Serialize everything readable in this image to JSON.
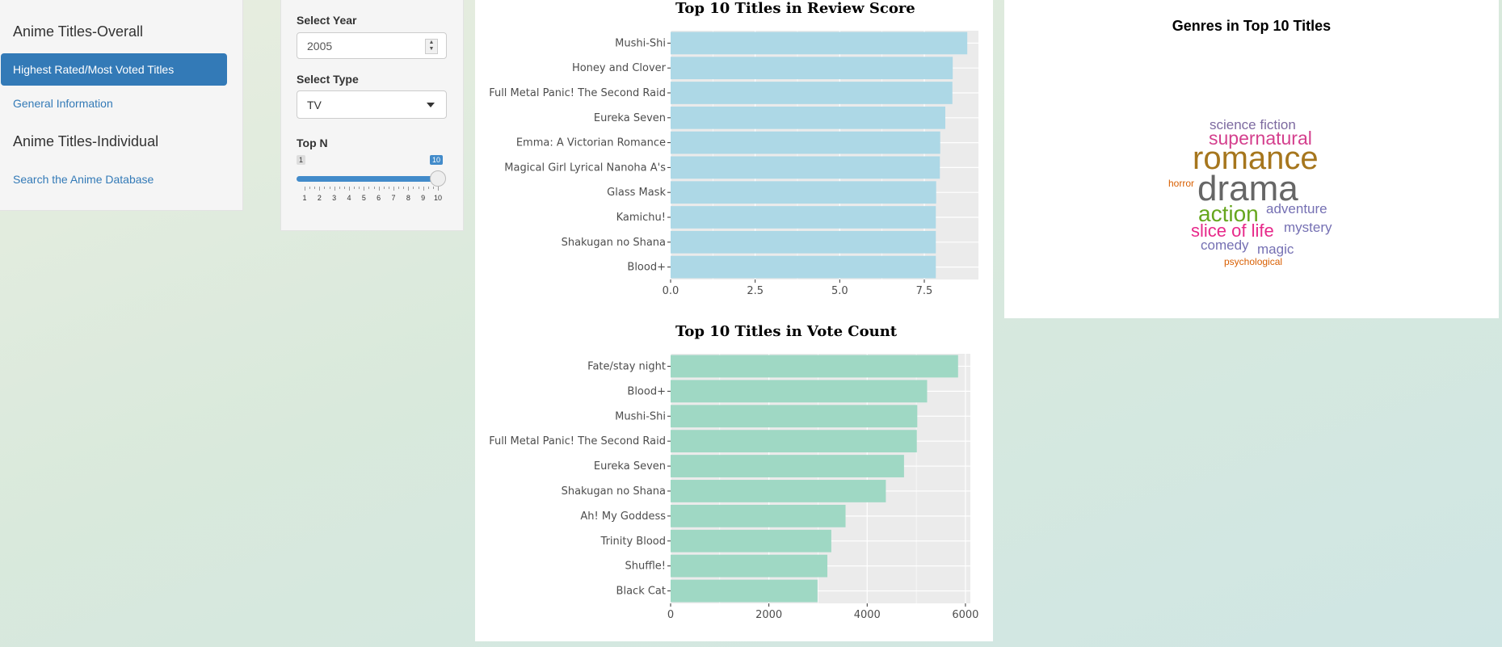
{
  "sidebar": {
    "section1_title": "Anime Titles-Overall",
    "item_active": "Highest Rated/Most Voted Titles",
    "item_general": "General Information",
    "section2_title": "Anime Titles-Individual",
    "item_search": "Search the Anime Database"
  },
  "controls": {
    "year_label": "Select Year",
    "year_value": "2005",
    "type_label": "Select Type",
    "type_value": "TV",
    "topn_label": "Top N",
    "slider_min": "1",
    "slider_max": "10",
    "slider_value": "10",
    "slider_ticks": [
      "1",
      "2",
      "3",
      "4",
      "5",
      "6",
      "7",
      "8",
      "9",
      "10"
    ]
  },
  "chart_data": [
    {
      "type": "bar",
      "orientation": "horizontal",
      "title": "Top 10 Titles in Review Score",
      "categories": [
        "Mushi-Shi",
        "Honey and Clover",
        "Full Metal Panic! The Second Raid",
        "Eureka Seven",
        "Emma: A Victorian Romance",
        "Magical Girl Lyrical Nanoha A's",
        "Glass Mask",
        "Kamichu!",
        "Shakugan no Shana",
        "Blood+"
      ],
      "values": [
        8.77,
        8.34,
        8.33,
        8.12,
        7.97,
        7.96,
        7.85,
        7.84,
        7.84,
        7.84
      ],
      "xlim": [
        0,
        9.1
      ],
      "ticks": [
        "0.0",
        "2.5",
        "5.0",
        "7.5"
      ],
      "tick_values": [
        0,
        2.5,
        5,
        7.5
      ],
      "color": "#add8e6",
      "grid": true
    },
    {
      "type": "bar",
      "orientation": "horizontal",
      "title": "Top 10 Titles in Vote Count",
      "categories": [
        "Fate/stay night",
        "Blood+",
        "Mushi-Shi",
        "Full Metal Panic! The Second Raid",
        "Eureka Seven",
        "Shakugan no Shana",
        "Ah! My Goddess",
        "Trinity Blood",
        "Shuffle!",
        "Black Cat"
      ],
      "values": [
        5850,
        5220,
        5020,
        5010,
        4750,
        4380,
        3560,
        3270,
        3190,
        2990
      ],
      "xlim": [
        0,
        6100
      ],
      "ticks": [
        "0",
        "2000",
        "4000",
        "6000"
      ],
      "tick_values": [
        0,
        2000,
        4000,
        6000
      ],
      "color": "#9fd8c4",
      "grid": true
    }
  ],
  "wordcloud": {
    "title": "Genres in Top 10 Titles",
    "words": [
      {
        "text": "science fiction",
        "color": "#7d6aa0"
      },
      {
        "text": "supernatural",
        "color": "#d43f8d"
      },
      {
        "text": "romance",
        "color": "#a6761d"
      },
      {
        "text": "horror",
        "color": "#d95f02"
      },
      {
        "text": "drama",
        "color": "#666666"
      },
      {
        "text": "action",
        "color": "#66a61e"
      },
      {
        "text": "adventure",
        "color": "#7570b3"
      },
      {
        "text": "slice of life",
        "color": "#e7298a"
      },
      {
        "text": "mystery",
        "color": "#7570b3"
      },
      {
        "text": "comedy",
        "color": "#7570b3"
      },
      {
        "text": "magic",
        "color": "#7570b3"
      },
      {
        "text": "psychological",
        "color": "#d95f02"
      }
    ]
  }
}
